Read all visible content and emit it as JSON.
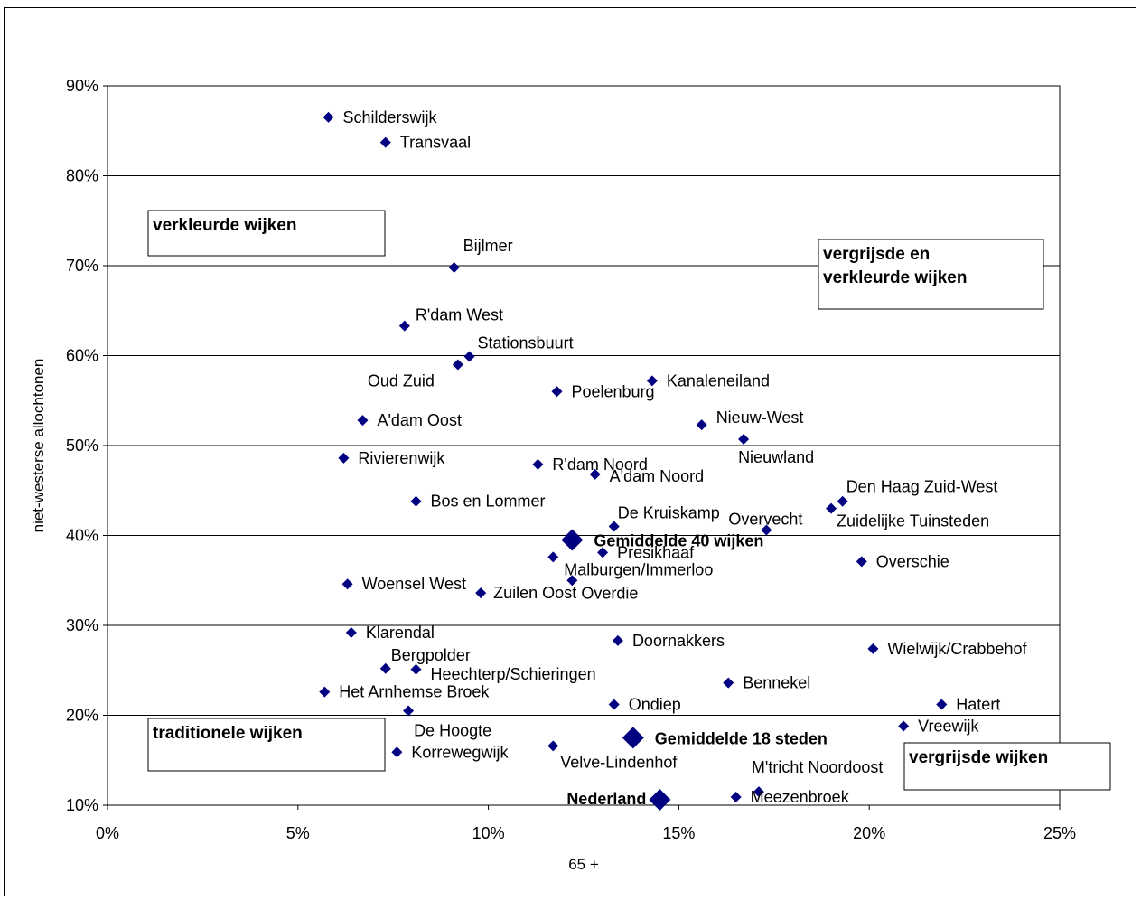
{
  "chart_data": {
    "type": "scatter",
    "title": "",
    "xlabel": "65 +",
    "ylabel": "niet-westerse allochtonen",
    "xlim": [
      0,
      25
    ],
    "ylim": [
      10,
      90
    ],
    "x_ticks": [
      "0%",
      "5%",
      "10%",
      "15%",
      "20%",
      "25%"
    ],
    "y_ticks": [
      "10%",
      "20%",
      "30%",
      "40%",
      "50%",
      "60%",
      "70%",
      "80%",
      "90%"
    ],
    "grid": "horizontal",
    "marker_color": "#000080",
    "points": [
      {
        "label": "Schilderswijk",
        "x": 5.8,
        "y": 86.5
      },
      {
        "label": "Transvaal",
        "x": 7.3,
        "y": 83.7
      },
      {
        "label": "Bijlmer",
        "x": 9.1,
        "y": 69.8
      },
      {
        "label": "R'dam West",
        "x": 7.8,
        "y": 63.3
      },
      {
        "label": "Stationsbuurt",
        "x": 9.5,
        "y": 59.9
      },
      {
        "label": "Oud Zuid",
        "x": 9.2,
        "y": 59.0
      },
      {
        "label": "Poelenburg",
        "x": 11.8,
        "y": 56.0
      },
      {
        "label": "Kanaleneiland",
        "x": 14.3,
        "y": 57.2
      },
      {
        "label": "A'dam Oost",
        "x": 6.7,
        "y": 52.8
      },
      {
        "label": "Nieuw-West",
        "x": 15.6,
        "y": 52.3
      },
      {
        "label": "Nieuwland",
        "x": 16.7,
        "y": 50.7
      },
      {
        "label": "Rivierenwijk",
        "x": 6.2,
        "y": 48.6
      },
      {
        "label": "R'dam Noord",
        "x": 11.3,
        "y": 47.9
      },
      {
        "label": "A'dam Noord",
        "x": 12.8,
        "y": 46.8
      },
      {
        "label": "Bos en Lommer",
        "x": 8.1,
        "y": 43.8
      },
      {
        "label": "Den Haag Zuid-West",
        "x": 19.3,
        "y": 43.8
      },
      {
        "label": "Zuidelijke Tuinsteden",
        "x": 19.0,
        "y": 43.0
      },
      {
        "label": "De Kruiskamp",
        "x": 13.3,
        "y": 41.0
      },
      {
        "label": "Overvecht",
        "x": 17.3,
        "y": 40.6
      },
      {
        "label": "Gemiddelde 40 wijken",
        "x": 12.2,
        "y": 39.5,
        "emphasis": true
      },
      {
        "label": "Presikhaaf",
        "x": 13.0,
        "y": 38.1
      },
      {
        "label": "Malburgen/Immerloo",
        "x": 11.7,
        "y": 37.6
      },
      {
        "label": "Overschie",
        "x": 19.8,
        "y": 37.1
      },
      {
        "label": "Woensel West",
        "x": 6.3,
        "y": 34.6
      },
      {
        "label": "Overdie",
        "x": 12.2,
        "y": 35.0
      },
      {
        "label": "Zuilen Oost",
        "x": 9.8,
        "y": 33.6
      },
      {
        "label": "Klarendal",
        "x": 6.4,
        "y": 29.2
      },
      {
        "label": "Doornakkers",
        "x": 13.4,
        "y": 28.3
      },
      {
        "label": "Wielwijk/Crabbehof",
        "x": 20.1,
        "y": 27.4
      },
      {
        "label": "Bergpolder",
        "x": 7.3,
        "y": 25.2
      },
      {
        "label": "Heechterp/Schieringen",
        "x": 8.1,
        "y": 25.1
      },
      {
        "label": "Bennekel",
        "x": 16.3,
        "y": 23.6
      },
      {
        "label": "Het Arnhemse Broek",
        "x": 5.7,
        "y": 22.6
      },
      {
        "label": "Ondiep",
        "x": 13.3,
        "y": 21.2
      },
      {
        "label": "Hatert",
        "x": 21.9,
        "y": 21.2
      },
      {
        "label": "De Hoogte",
        "x": 7.9,
        "y": 20.5
      },
      {
        "label": "Vreewijk",
        "x": 20.9,
        "y": 18.8
      },
      {
        "label": "Gemiddelde 18 steden",
        "x": 13.8,
        "y": 17.5,
        "emphasis": true
      },
      {
        "label": "Velve-Lindenhof",
        "x": 11.7,
        "y": 16.6
      },
      {
        "label": "Korrewegwijk",
        "x": 7.6,
        "y": 15.9
      },
      {
        "label": "M'tricht Noordoost",
        "x": 17.1,
        "y": 11.5
      },
      {
        "label": "Meezenbroek",
        "x": 16.5,
        "y": 10.9
      },
      {
        "label": "Nederland",
        "x": 14.5,
        "y": 10.6,
        "emphasis": true
      }
    ],
    "annotations": [
      {
        "id": "verkleurd",
        "lines": [
          "verkleurde wijken"
        ]
      },
      {
        "id": "vergrijsd-verkleurd",
        "lines": [
          "vergrijsde en",
          "verkleurde wijken"
        ]
      },
      {
        "id": "traditioneel",
        "lines": [
          "traditionele wijken"
        ]
      },
      {
        "id": "vergrijsd",
        "lines": [
          "vergrijsde wijken"
        ]
      }
    ]
  }
}
